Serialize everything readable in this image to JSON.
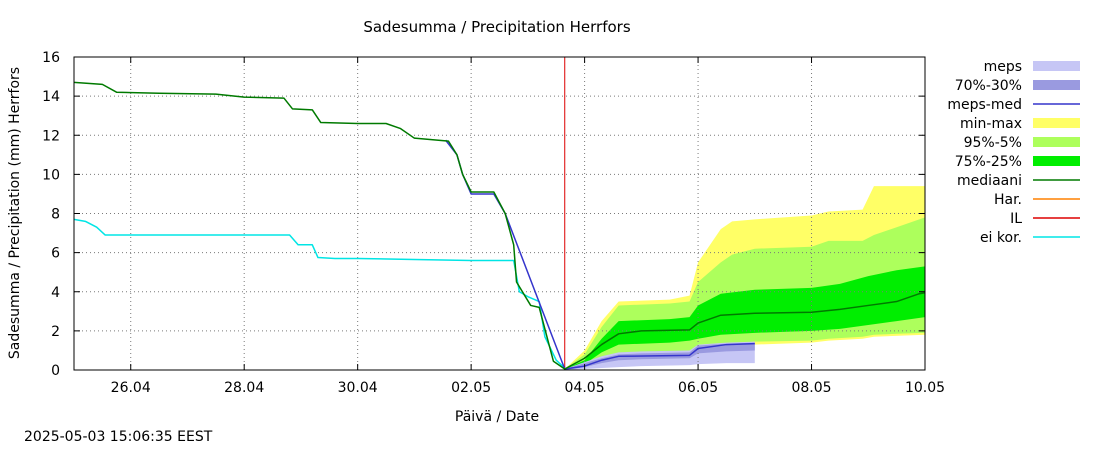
{
  "chart_data": {
    "type": "area",
    "title": "Sadesumma / Precipitation  Herrfors",
    "xlabel": "Päivä / Date",
    "ylabel": "Sadesumma / Precipitation (mm)  Herrfors",
    "xlim": [
      25.0,
      40.0
    ],
    "ylim": [
      0,
      16
    ],
    "x_unit": "day (25 = 25.04 00:00, 31 = 01.05 00:00)",
    "grid": true,
    "legend_position": "right",
    "x_ticks": [
      {
        "x": 26,
        "label": "26.04"
      },
      {
        "x": 28,
        "label": "28.04"
      },
      {
        "x": 30,
        "label": "30.04"
      },
      {
        "x": 32,
        "label": "02.05"
      },
      {
        "x": 34,
        "label": "04.05"
      },
      {
        "x": 36,
        "label": "06.05"
      },
      {
        "x": 38,
        "label": "08.05"
      },
      {
        "x": 40,
        "label": "10.05"
      }
    ],
    "y_ticks": [
      0,
      2,
      4,
      6,
      8,
      10,
      12,
      14,
      16
    ],
    "forecast_start_x": 33.65,
    "legend": [
      {
        "label": "meps",
        "kind": "box",
        "color": "#c6c6f5"
      },
      {
        "label": "70%-30%",
        "kind": "box",
        "color": "#9a9ae0"
      },
      {
        "label": "meps-med",
        "kind": "line",
        "color": "#3535cc"
      },
      {
        "label": "min-max",
        "kind": "box",
        "color": "#ffff66"
      },
      {
        "label": "95%-5%",
        "kind": "box",
        "color": "#adff5c"
      },
      {
        "label": "75%-25%",
        "kind": "box",
        "color": "#00ee00"
      },
      {
        "label": "mediaani",
        "kind": "line",
        "color": "#007a00"
      },
      {
        "label": "Har.",
        "kind": "line",
        "color": "#ff8000"
      },
      {
        "label": "IL",
        "kind": "line",
        "color": "#dd0000"
      },
      {
        "label": "ei kor.",
        "kind": "line",
        "color": "#00e5e5"
      }
    ],
    "bands": [
      {
        "name": "min-max",
        "color": "#ffff66",
        "x": [
          33.65,
          34.0,
          34.3,
          34.6,
          35.5,
          35.85,
          36.0,
          36.4,
          36.6,
          37.0,
          38.0,
          38.3,
          38.9,
          39.1,
          40.0
        ],
        "upper": [
          0.05,
          1.0,
          2.5,
          3.5,
          3.6,
          3.8,
          5.5,
          7.2,
          7.6,
          7.7,
          7.9,
          8.1,
          8.2,
          9.4,
          9.4
        ],
        "lower": [
          0.0,
          0.1,
          0.3,
          0.5,
          0.7,
          0.9,
          1.0,
          1.15,
          1.2,
          1.3,
          1.4,
          1.5,
          1.6,
          1.7,
          1.8
        ]
      },
      {
        "name": "95%-5%",
        "color": "#adff5c",
        "x": [
          33.65,
          34.0,
          34.3,
          34.6,
          35.5,
          35.85,
          36.0,
          36.4,
          36.6,
          37.0,
          38.0,
          38.3,
          38.9,
          39.1,
          39.5,
          40.0
        ],
        "upper": [
          0.05,
          0.8,
          2.2,
          3.3,
          3.4,
          3.5,
          4.5,
          5.5,
          5.9,
          6.2,
          6.3,
          6.6,
          6.6,
          6.9,
          7.3,
          7.8
        ],
        "lower": [
          0.0,
          0.2,
          0.5,
          0.7,
          0.9,
          1.0,
          1.1,
          1.3,
          1.35,
          1.45,
          1.5,
          1.6,
          1.7,
          1.8,
          1.85,
          1.9
        ]
      },
      {
        "name": "75%-25%",
        "color": "#00ee00",
        "x": [
          33.65,
          34.0,
          34.3,
          34.6,
          35.5,
          35.85,
          36.0,
          36.4,
          37.0,
          38.0,
          38.5,
          39.0,
          39.5,
          40.0
        ],
        "upper": [
          0.05,
          0.5,
          1.6,
          2.5,
          2.6,
          2.7,
          3.3,
          3.9,
          4.1,
          4.2,
          4.4,
          4.8,
          5.1,
          5.3
        ],
        "lower": [
          0.0,
          0.3,
          0.9,
          1.3,
          1.4,
          1.5,
          1.6,
          1.8,
          1.9,
          2.0,
          2.1,
          2.3,
          2.5,
          2.7
        ]
      },
      {
        "name": "meps",
        "color": "#c6c6f5",
        "x": [
          33.65,
          34.0,
          34.3,
          34.6,
          35.0,
          35.85,
          36.0,
          36.5,
          37.0
        ],
        "upper": [
          0.05,
          0.4,
          0.7,
          0.9,
          0.95,
          1.0,
          1.3,
          1.4,
          1.45
        ],
        "lower": [
          0.0,
          0.05,
          0.1,
          0.15,
          0.2,
          0.25,
          0.3,
          0.35,
          0.35
        ]
      },
      {
        "name": "70%-30%",
        "color": "#9a9ae0",
        "x": [
          33.65,
          34.0,
          34.3,
          34.6,
          35.0,
          35.85,
          36.0,
          36.5,
          37.0
        ],
        "upper": [
          0.05,
          0.35,
          0.6,
          0.8,
          0.85,
          0.9,
          1.25,
          1.35,
          1.4
        ],
        "lower": [
          0.0,
          0.15,
          0.35,
          0.5,
          0.55,
          0.6,
          0.85,
          0.95,
          1.0
        ]
      }
    ],
    "series": [
      {
        "name": "mediaani",
        "color": "#007a00",
        "x": [
          25.0,
          25.5,
          25.75,
          26.5,
          27.5,
          28.0,
          28.7,
          28.85,
          29.2,
          29.35,
          30.0,
          30.5,
          30.75,
          31.0,
          31.6,
          31.75,
          31.85,
          32.0,
          32.4,
          32.6,
          32.75,
          32.8,
          33.05,
          33.2,
          33.45,
          33.65,
          34.0,
          34.3,
          34.6,
          35.0,
          35.85,
          36.0,
          36.4,
          37.0,
          38.0,
          38.5,
          39.0,
          39.5,
          39.9,
          40.0
        ],
        "y": [
          14.7,
          14.6,
          14.2,
          14.15,
          14.1,
          13.95,
          13.9,
          13.35,
          13.3,
          12.65,
          12.6,
          12.6,
          12.35,
          11.85,
          11.7,
          11.0,
          10.0,
          9.1,
          9.1,
          8.0,
          6.4,
          4.5,
          3.3,
          3.2,
          0.45,
          0.05,
          0.6,
          1.3,
          1.85,
          2.0,
          2.05,
          2.4,
          2.8,
          2.9,
          2.95,
          3.1,
          3.3,
          3.5,
          3.9,
          3.95
        ]
      },
      {
        "name": "meps-med",
        "color": "#3535cc",
        "x": [
          31.55,
          31.75,
          31.85,
          32.0,
          32.4,
          32.6,
          33.65,
          34.0,
          34.3,
          34.6,
          35.85,
          36.0,
          36.5,
          37.0
        ],
        "y": [
          11.75,
          11.0,
          10.0,
          9.0,
          9.0,
          8.0,
          0.05,
          0.2,
          0.5,
          0.7,
          0.75,
          1.1,
          1.3,
          1.35
        ]
      },
      {
        "name": "ei kor.",
        "color": "#00e5e5",
        "x": [
          25.0,
          25.2,
          25.4,
          25.55,
          26.0,
          27.0,
          28.0,
          28.8,
          28.95,
          29.2,
          29.3,
          29.6,
          30.0,
          31.0,
          32.0,
          32.5,
          32.75,
          32.85,
          33.0,
          33.2,
          33.3,
          33.5,
          33.65
        ],
        "y": [
          7.7,
          7.6,
          7.3,
          6.9,
          6.9,
          6.9,
          6.9,
          6.9,
          6.4,
          6.4,
          5.75,
          5.7,
          5.7,
          5.65,
          5.6,
          5.6,
          5.6,
          4.0,
          3.75,
          3.5,
          1.7,
          0.5,
          0.1
        ]
      }
    ]
  },
  "timestamp": "2025-05-03 15:06:35 EEST"
}
